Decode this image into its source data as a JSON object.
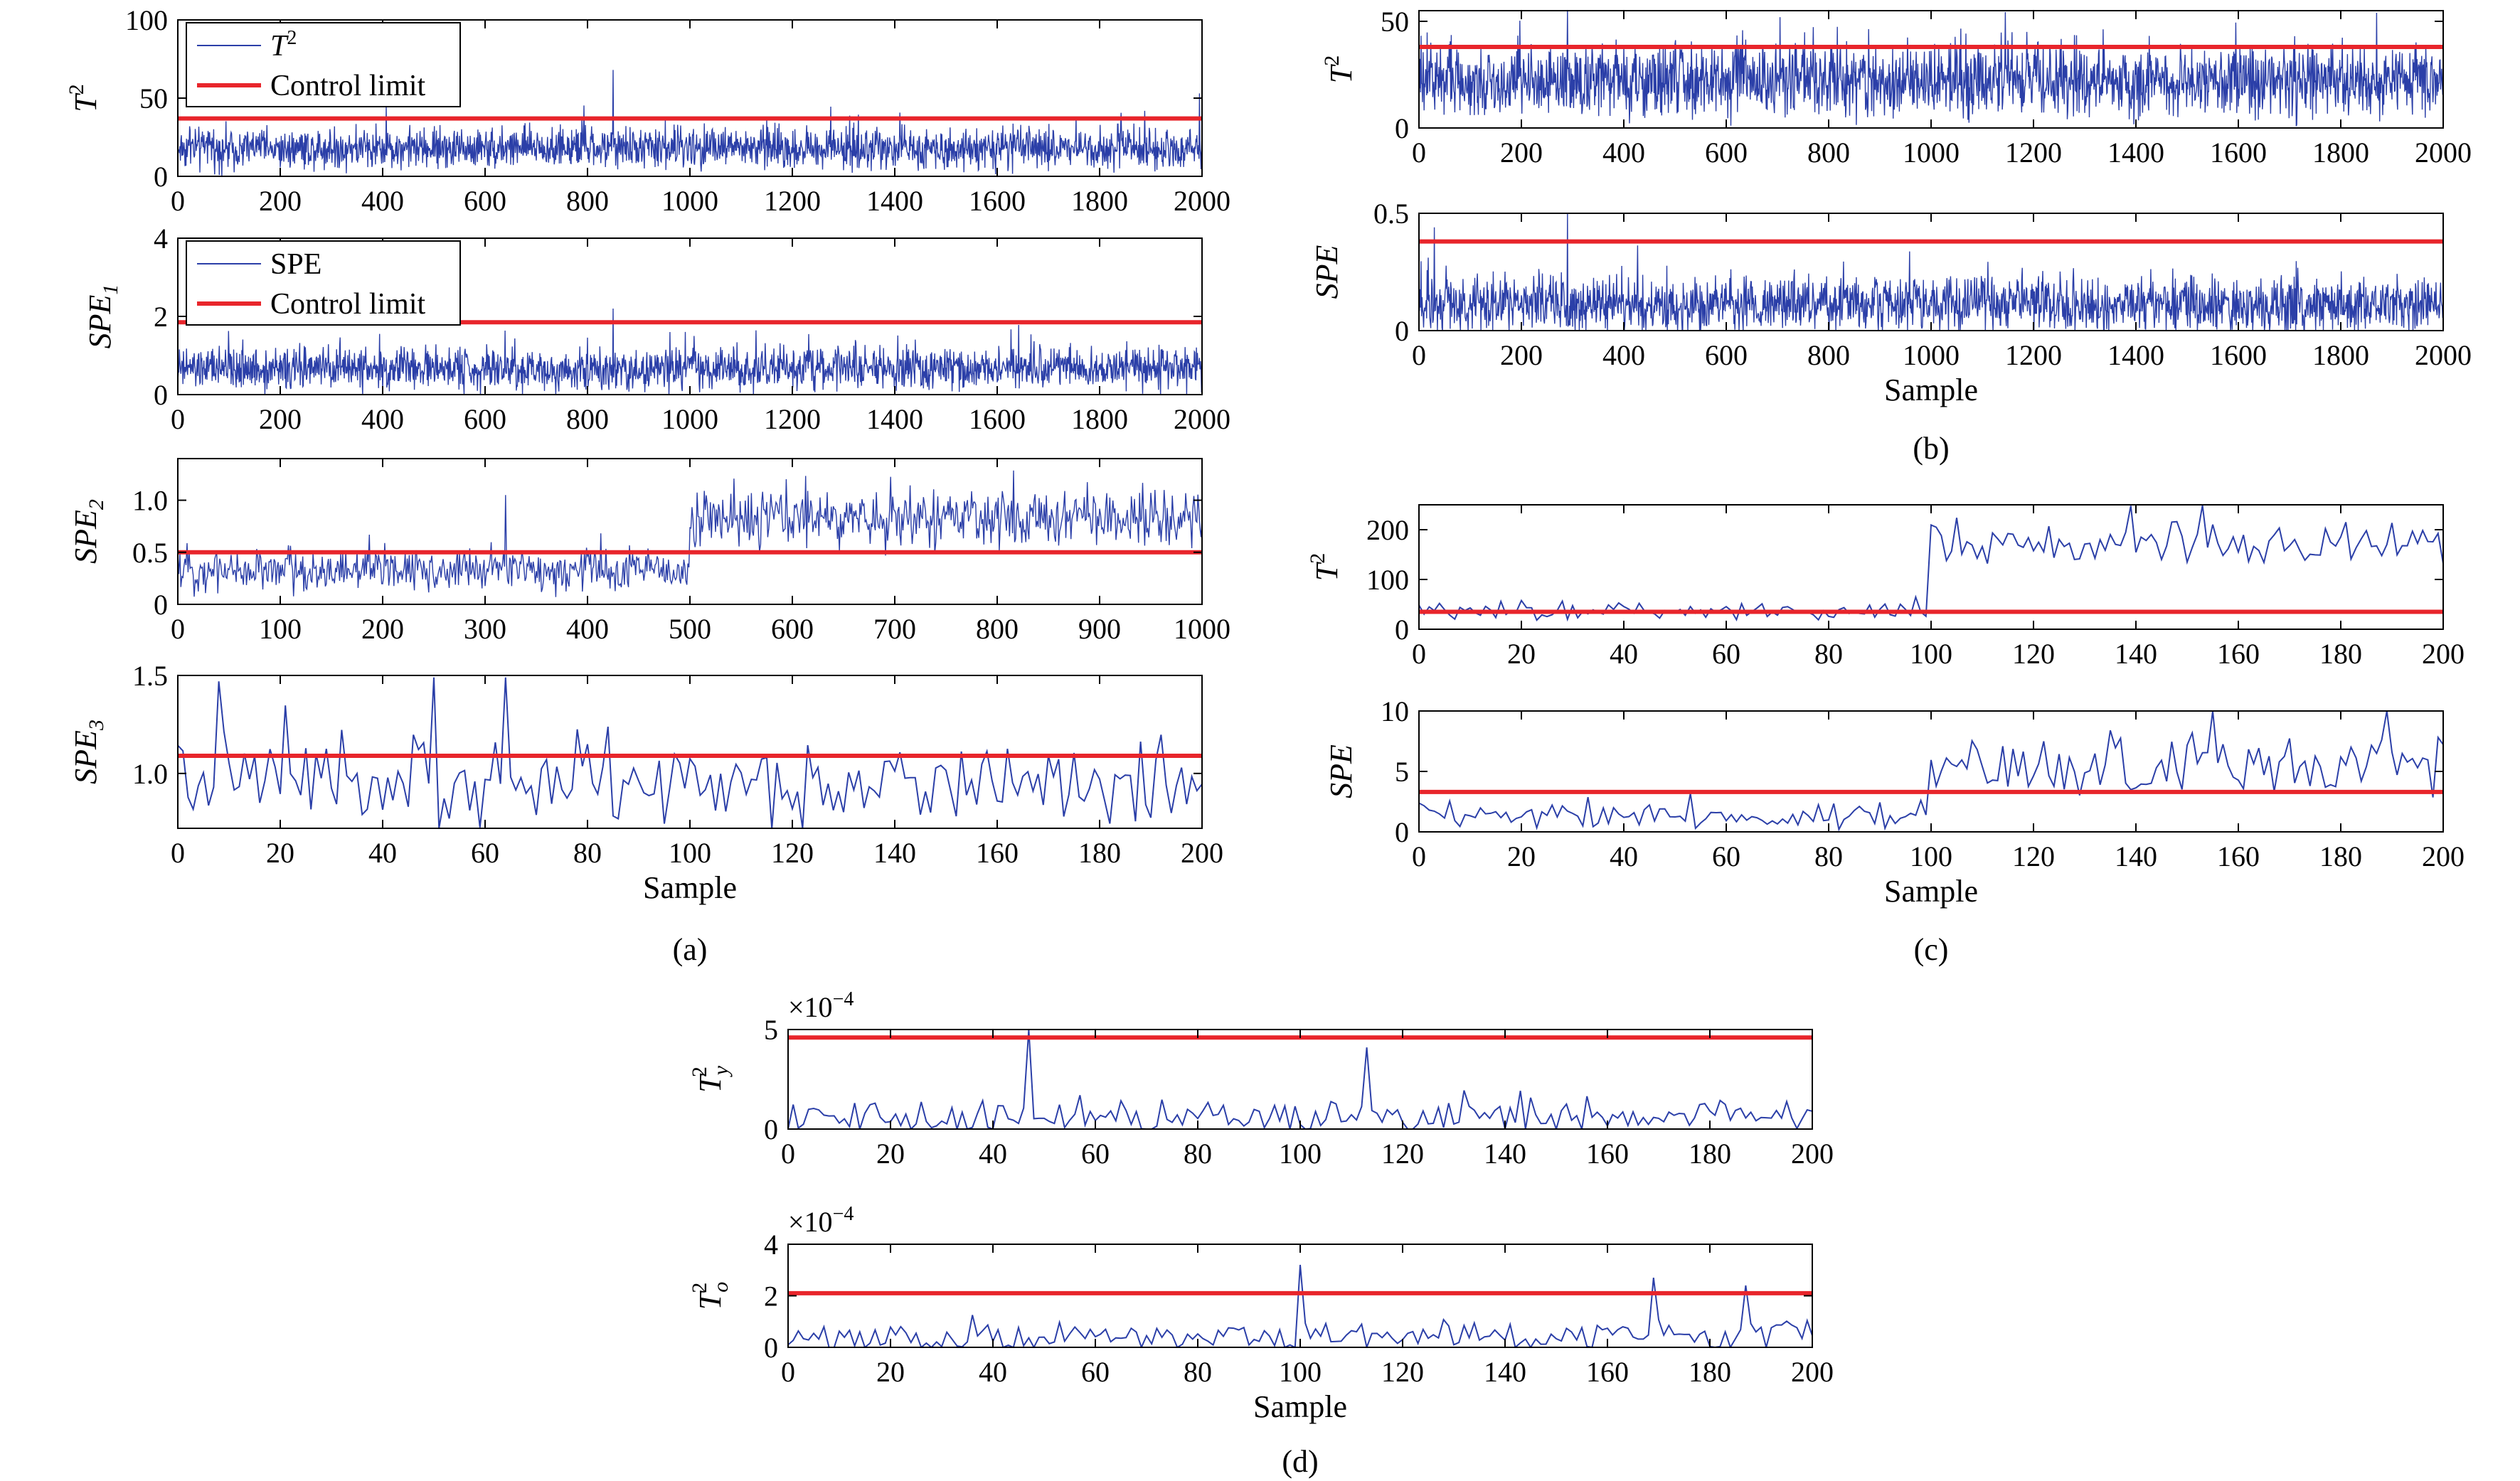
{
  "colors": {
    "series": "#2b3fa8",
    "limit": "#e8252b",
    "axis": "#000000"
  },
  "chart_data": [
    {
      "id": "a1",
      "type": "line",
      "panel": "(a)",
      "ylabel": "T",
      "ylabel_sup": "2",
      "ylabel_sub": "",
      "xlim": [
        0,
        2000
      ],
      "ylim": [
        0,
        100
      ],
      "xticks": [
        "0",
        "200",
        "400",
        "600",
        "800",
        "1000",
        "1200",
        "1400",
        "1600",
        "1800",
        "2000"
      ],
      "yticks": [
        "0",
        "50",
        "100"
      ],
      "control_limit": 37,
      "n": 2000,
      "base": 18,
      "noise": 11,
      "spikes": [
        [
          850,
          68
        ],
        [
          1995,
          53
        ]
      ],
      "legend": [
        {
          "label": "T",
          "sup": "2",
          "kind": "series"
        },
        {
          "label": "Control limit",
          "kind": "limit"
        }
      ]
    },
    {
      "id": "a2",
      "type": "line",
      "panel": "(a)",
      "ylabel": "SPE",
      "ylabel_sup": "",
      "ylabel_sub": "1",
      "xlim": [
        0,
        2000
      ],
      "ylim": [
        0,
        4
      ],
      "xticks": [
        "0",
        "200",
        "400",
        "600",
        "800",
        "1000",
        "1200",
        "1400",
        "1600",
        "1800",
        "2000"
      ],
      "yticks": [
        "0",
        "2",
        "4"
      ],
      "control_limit": 1.85,
      "n": 2000,
      "base": 0.65,
      "noise": 0.45,
      "spikes": [
        [
          850,
          2.2
        ]
      ],
      "legend": [
        {
          "label": "SPE",
          "kind": "series"
        },
        {
          "label": "Control limit",
          "kind": "limit"
        }
      ]
    },
    {
      "id": "a3",
      "type": "line",
      "panel": "(a)",
      "ylabel": "SPE",
      "ylabel_sup": "",
      "ylabel_sub": "2",
      "xlim": [
        0,
        1000
      ],
      "ylim": [
        0,
        1.4
      ],
      "xticks": [
        "0",
        "100",
        "200",
        "300",
        "400",
        "500",
        "600",
        "700",
        "800",
        "900",
        "1000"
      ],
      "yticks": [
        "0",
        "0.5",
        "1.0"
      ],
      "control_limit": 0.5,
      "n": 1000,
      "base": 0.33,
      "noise": 0.18,
      "shift_at": 500,
      "shift_base": 0.82,
      "shift_noise": 0.22,
      "spikes": [
        [
          320,
          1.05
        ]
      ]
    },
    {
      "id": "a4",
      "type": "line",
      "panel": "(a)",
      "ylabel": "SPE",
      "ylabel_sup": "",
      "ylabel_sub": "3",
      "xlabel": "Sample",
      "xlim": [
        0,
        200
      ],
      "ylim": [
        0.72,
        1.5
      ],
      "xticks": [
        "0",
        "20",
        "40",
        "60",
        "80",
        "100",
        "120",
        "140",
        "160",
        "180",
        "200"
      ],
      "yticks": [
        "1.0",
        "1.5"
      ],
      "control_limit": 1.09,
      "n": 200,
      "base": 0.94,
      "noise": 0.19,
      "spikes": [
        [
          8,
          1.47
        ],
        [
          50,
          1.49
        ],
        [
          64,
          1.49
        ]
      ]
    },
    {
      "id": "b1",
      "type": "line",
      "panel": "(b)",
      "ylabel": "T",
      "ylabel_sup": "2",
      "ylabel_sub": "",
      "xlim": [
        0,
        2000
      ],
      "ylim": [
        0,
        55
      ],
      "xticks": [
        "0",
        "200",
        "400",
        "600",
        "800",
        "1000",
        "1200",
        "1400",
        "1600",
        "1800",
        "2000"
      ],
      "yticks": [
        "0",
        "50"
      ],
      "control_limit": 38,
      "n": 2000,
      "base": 22,
      "noise": 14,
      "spikes": [
        [
          290,
          55
        ],
        [
          1870,
          54
        ]
      ]
    },
    {
      "id": "b2",
      "type": "line",
      "panel": "(b)",
      "ylabel": "SPE",
      "ylabel_sup": "",
      "ylabel_sub": "",
      "xlabel": "Sample",
      "xlim": [
        0,
        2000
      ],
      "ylim": [
        0,
        0.5
      ],
      "xticks": [
        "0",
        "200",
        "400",
        "600",
        "800",
        "1000",
        "1200",
        "1400",
        "1600",
        "1800",
        "2000"
      ],
      "yticks": [
        "0",
        "0.5"
      ],
      "control_limit": 0.38,
      "n": 2000,
      "base": 0.11,
      "noise": 0.1,
      "spikes": [
        [
          290,
          0.5
        ],
        [
          30,
          0.44
        ]
      ]
    },
    {
      "id": "c1",
      "type": "line",
      "panel": "(c)",
      "ylabel": "T",
      "ylabel_sup": "2",
      "ylabel_sub": "",
      "xlim": [
        0,
        200
      ],
      "ylim": [
        0,
        250
      ],
      "xticks": [
        "0",
        "20",
        "40",
        "60",
        "80",
        "100",
        "120",
        "140",
        "160",
        "180",
        "200"
      ],
      "yticks": [
        "0",
        "100",
        "200"
      ],
      "control_limit": 35,
      "n": 200,
      "base": 35,
      "noise": 17,
      "shift_at": 100,
      "shift_base": 175,
      "shift_noise": 38,
      "spikes": [
        [
          101,
          205
        ],
        [
          139,
          248
        ],
        [
          153,
          249
        ]
      ]
    },
    {
      "id": "c2",
      "type": "line",
      "panel": "(c)",
      "ylabel": "SPE",
      "ylabel_sup": "",
      "ylabel_sub": "",
      "xlabel": "Sample",
      "xlim": [
        0,
        200
      ],
      "ylim": [
        0,
        10
      ],
      "xticks": [
        "0",
        "20",
        "40",
        "60",
        "80",
        "100",
        "120",
        "140",
        "160",
        "180",
        "200"
      ],
      "yticks": [
        "0",
        "5",
        "10"
      ],
      "control_limit": 3.3,
      "n": 200,
      "base": 1.3,
      "noise": 1.0,
      "shift_at": 100,
      "shift_base": 5.5,
      "shift_noise": 2.2,
      "spikes": [
        [
          155,
          10
        ],
        [
          189,
          10
        ]
      ]
    },
    {
      "id": "d1",
      "type": "line",
      "panel": "(d)",
      "ylabel": "T",
      "ylabel_sup": "2",
      "ylabel_sub": "y",
      "exponent_label": "×10",
      "exponent_power": "−4",
      "xlim": [
        0,
        200
      ],
      "ylim": [
        0,
        5
      ],
      "xticks": [
        "0",
        "20",
        "40",
        "60",
        "80",
        "100",
        "120",
        "140",
        "160",
        "180",
        "200"
      ],
      "yticks": [
        "0",
        "5"
      ],
      "control_limit": 4.6,
      "n": 200,
      "base": 0.6,
      "noise": 0.75,
      "spikes": [
        [
          47,
          5
        ],
        [
          113,
          4.1
        ]
      ]
    },
    {
      "id": "d2",
      "type": "line",
      "panel": "(d)",
      "ylabel": "T",
      "ylabel_sup": "2",
      "ylabel_sub": "o",
      "xlabel": "Sample",
      "exponent_label": "×10",
      "exponent_power": "−4",
      "xlim": [
        0,
        200
      ],
      "ylim": [
        0,
        4
      ],
      "xticks": [
        "0",
        "20",
        "40",
        "60",
        "80",
        "100",
        "120",
        "140",
        "160",
        "180",
        "200"
      ],
      "yticks": [
        "0",
        "2",
        "4"
      ],
      "control_limit": 2.1,
      "n": 200,
      "base": 0.45,
      "noise": 0.55,
      "spikes": [
        [
          100,
          3.2
        ],
        [
          169,
          2.7
        ],
        [
          187,
          2.4
        ]
      ]
    }
  ],
  "panels": [
    {
      "label": "(a)"
    },
    {
      "label": "(b)"
    },
    {
      "label": "(c)"
    },
    {
      "label": "(d)"
    }
  ]
}
